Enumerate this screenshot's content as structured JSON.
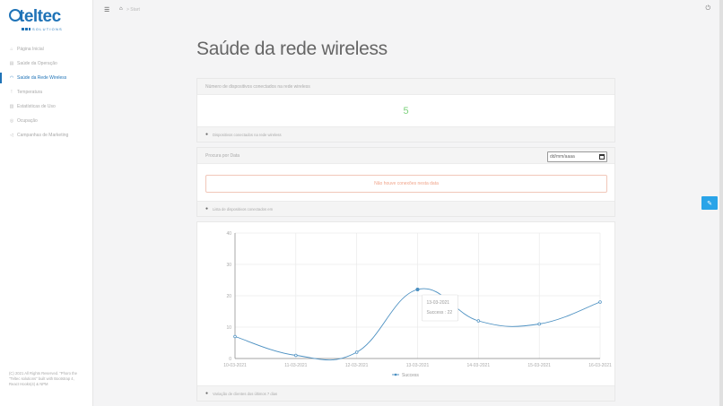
{
  "sidebar": {
    "logo_text": "teltec",
    "logo_sub": "SOLUTIONS",
    "items": [
      {
        "label": "Página Inicial",
        "icon": "home-icon",
        "active": false
      },
      {
        "label": "Saúde da Operação",
        "icon": "bar-chart-icon",
        "active": false
      },
      {
        "label": "Saúde da Rede Wireless",
        "icon": "wifi-icon",
        "active": true
      },
      {
        "label": "Temperatura",
        "icon": "thermometer-icon",
        "active": false
      },
      {
        "label": "Estatísticas de Uso",
        "icon": "stats-icon",
        "active": false
      },
      {
        "label": "Ocupação",
        "icon": "occupancy-icon",
        "active": false
      },
      {
        "label": "Campanhas de Marketing",
        "icon": "megaphone-icon",
        "active": false
      }
    ],
    "footer": "(C) 2021 All Rights Reserved. \"Phoro the \"Teltec solutions\" built with Bootstrap 4, React Hooks(4) & NPM"
  },
  "topbar": {
    "breadcrumb": "> Start"
  },
  "page": {
    "title": "Saúde da rede wireless"
  },
  "devices_card": {
    "header": "Número de dispositivos conectados na rede wireless",
    "value": "5",
    "footer": "Dispositivos conectados na rede wireless"
  },
  "search_card": {
    "header": "Procura por Data",
    "date_placeholder": "dd/mm/aaaa",
    "alert": "Não houve conexões nesta data",
    "footer": "Lista de dispositivos conectados em"
  },
  "chart_card": {
    "footer": "Variação de clientes dos últimos 7 dias"
  },
  "tooltip": {
    "date": "13-03-2021",
    "label": "Success : 22"
  },
  "colors": {
    "accent": "#1f73b7",
    "line": "#4a8fc1",
    "success_number": "#7ed27e",
    "alert_text": "#f0a48a",
    "fab": "#2aa4e8"
  },
  "chart_data": {
    "type": "line",
    "x": [
      "10-03-2021",
      "11-03-2021",
      "12-03-2021",
      "13-03-2021",
      "14-03-2021",
      "15-03-2021",
      "16-03-2021"
    ],
    "series": [
      {
        "name": "Success",
        "values": [
          7,
          1,
          2,
          22,
          12,
          11,
          18
        ]
      }
    ],
    "y_ticks": [
      0,
      10,
      20,
      30,
      40
    ],
    "ylim": [
      0,
      40
    ],
    "grid": true,
    "legend": "bottom"
  }
}
